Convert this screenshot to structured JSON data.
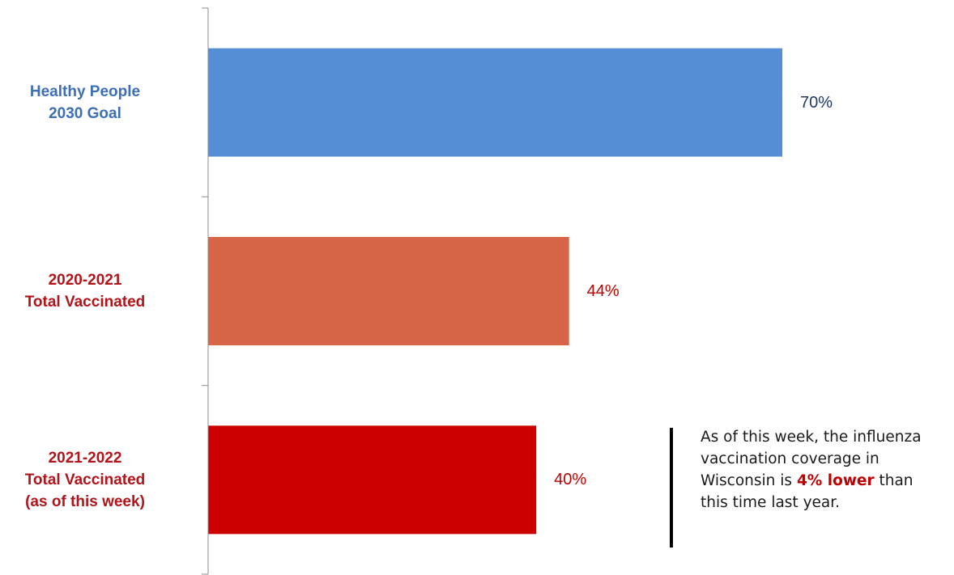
{
  "chart_data": {
    "type": "bar",
    "orientation": "horizontal",
    "categories": [
      [
        "Healthy People",
        "2030 Goal"
      ],
      [
        "2020-2021",
        "Total Vaccinated"
      ],
      [
        "2021-2022",
        "Total Vaccinated",
        "(as of this week)"
      ]
    ],
    "values": [
      70,
      44,
      40
    ],
    "value_labels": [
      "70%",
      "44%",
      "40%"
    ],
    "bar_colors": [
      "#558ED5",
      "#D66447",
      "#CC0000"
    ],
    "label_colors": [
      "#3D6FB6",
      "#B3141A",
      "#B3141A"
    ],
    "value_label_colors": [
      "#1F3864",
      "#C00000",
      "#C00000"
    ],
    "xlim": [
      0,
      100
    ],
    "title": "",
    "xlabel": "",
    "ylabel": ""
  },
  "annotation": {
    "before": "As of this week, the influenza vaccination coverage in Wisconsin is ",
    "highlight": "4% lower",
    "after": " than this time last year.",
    "highlight_color": "#C00000"
  }
}
